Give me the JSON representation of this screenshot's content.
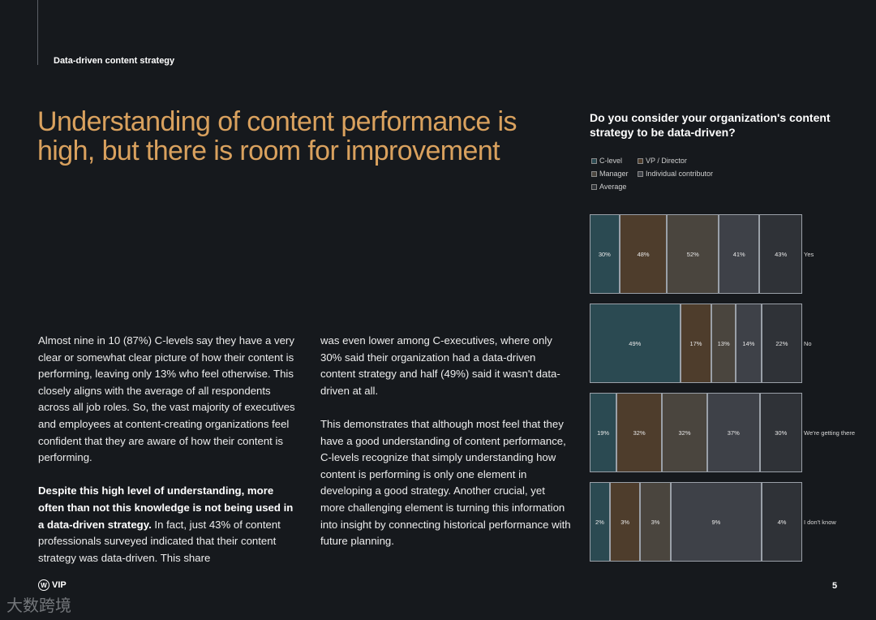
{
  "header": {
    "section_label": "Data-driven content strategy"
  },
  "headline": "Understanding of content performance is high, but there is room for improvement",
  "body": {
    "col1_p1": "Almost nine in 10 (87%) C-levels say they have a very clear or somewhat clear picture of how their content is performing, leaving only 13% who feel otherwise. This closely aligns with the average of all respondents across all job roles. So, the vast majority of executives and employees at content-creating organizations feel confident that they are aware of how their content is performing.",
    "col1_p2_bold": "Despite this high level of understanding, more often than not this knowledge is not being used in a data-driven strategy.",
    "col1_p2_rest": " In fact, just 43% of content professionals surveyed indicated that their content strategy was data-driven. This share",
    "col2_p1": "was even lower among C-executives, where only 30% said their organization had a data-driven content strategy and half (49%) said it wasn't data-driven at all.",
    "col2_p2": "This demonstrates that although most feel that they have a good understanding of content performance, C-levels recognize that simply understanding how content is performing is only one element in developing a good strategy. Another crucial, yet more challenging element is turning this information into insight by connecting historical performance with future planning."
  },
  "chart_data": {
    "type": "bar",
    "title": "Do you consider your organization's content strategy to be data-driven?",
    "legend": [
      "C-level",
      "VP / Director",
      "Manager",
      "Individual contributor",
      "Average"
    ],
    "legend_placement": "top-left",
    "categories": [
      "Yes",
      "No",
      "We're getting there",
      "I don't know"
    ],
    "series": [
      {
        "name": "C-level",
        "color": "#2b4a52",
        "values": [
          30,
          49,
          19,
          2
        ]
      },
      {
        "name": "VP / Director",
        "color": "#4e3d2c",
        "values": [
          48,
          17,
          32,
          3
        ]
      },
      {
        "name": "Manager",
        "color": "#4a453e",
        "values": [
          52,
          13,
          32,
          3
        ]
      },
      {
        "name": "Individual contributor",
        "color": "#3e4148",
        "values": [
          41,
          14,
          37,
          9
        ]
      },
      {
        "name": "Average",
        "color": "#2f3237",
        "values": [
          43,
          22,
          30,
          4
        ]
      }
    ],
    "value_suffix": "%"
  },
  "footer": {
    "logo_text": "VIP",
    "page_number": "5"
  },
  "watermark": "大数跨境"
}
